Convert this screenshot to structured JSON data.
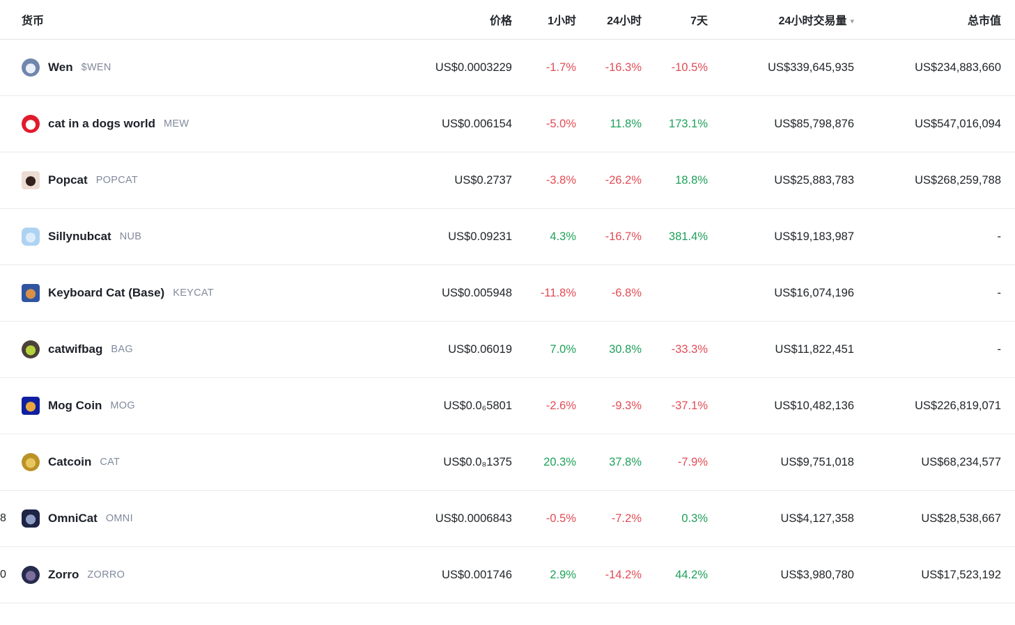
{
  "table": {
    "columns": {
      "coin": "货币",
      "price": "价格",
      "h1": "1小时",
      "h24": "24小时",
      "d7": "7天",
      "volume": "24小时交易量",
      "market_cap": "总市值"
    },
    "sort": {
      "active_column": "volume",
      "direction_icon": "▾"
    },
    "colors": {
      "up": "#1ea15a",
      "down": "#e24c55",
      "symbol_gray": "#808a9d",
      "text": "#212529"
    },
    "rows": [
      {
        "rank_partial": "",
        "name": "Wen",
        "symbol": "$WEN",
        "price": "US$0.0003229",
        "h1": "-1.7%",
        "h24": "-16.3%",
        "d7": "-10.5%",
        "volume": "US$339,645,935",
        "market_cap": "US$234,883,660",
        "icon": {
          "name": "wen-cat-logo",
          "shape": "circle",
          "inner": "#e9eff7",
          "outer": "#6f86ad"
        }
      },
      {
        "rank_partial": "",
        "name": "cat in a dogs world",
        "symbol": "MEW",
        "price": "US$0.006154",
        "h1": "-5.0%",
        "h24": "11.8%",
        "d7": "173.1%",
        "volume": "US$85,798,876",
        "market_cap": "US$547,016,094",
        "icon": {
          "name": "mew-cat-logo",
          "shape": "circle",
          "inner": "#ffffff",
          "outer": "#e11b2c"
        }
      },
      {
        "rank_partial": "",
        "name": "Popcat",
        "symbol": "POPCAT",
        "price": "US$0.2737",
        "h1": "-3.8%",
        "h24": "-26.2%",
        "d7": "18.8%",
        "volume": "US$25,883,783",
        "market_cap": "US$268,259,788",
        "icon": {
          "name": "popcat-logo",
          "shape": "square",
          "inner": "#32211c",
          "outer": "#ecddd4"
        }
      },
      {
        "rank_partial": "",
        "name": "Sillynubcat",
        "symbol": "NUB",
        "price": "US$0.09231",
        "h1": "4.3%",
        "h24": "-16.7%",
        "d7": "381.4%",
        "volume": "US$19,183,987",
        "market_cap": "-",
        "icon": {
          "name": "sillynubcat-logo",
          "shape": "rounded",
          "inner": "#ddedfb",
          "outer": "#aed2f2"
        }
      },
      {
        "rank_partial": "",
        "name": "Keyboard Cat (Base)",
        "symbol": "KEYCAT",
        "price": "US$0.005948",
        "h1": "-11.8%",
        "h24": "-6.8%",
        "d7": "",
        "volume": "US$16,074,196",
        "market_cap": "-",
        "icon": {
          "name": "keyboard-cat-logo",
          "shape": "square",
          "inner": "#d89048",
          "outer": "#2f55a0"
        }
      },
      {
        "rank_partial": "",
        "name": "catwifbag",
        "symbol": "BAG",
        "price": "US$0.06019",
        "h1": "7.0%",
        "h24": "30.8%",
        "d7": "-33.3%",
        "volume": "US$11,822,451",
        "market_cap": "-",
        "icon": {
          "name": "catwifbag-logo",
          "shape": "circle",
          "inner": "#b5d23a",
          "outer": "#4a4138"
        }
      },
      {
        "rank_partial": "",
        "name": "Mog Coin",
        "symbol": "MOG",
        "price": "US$0.0₆5801",
        "h1": "-2.6%",
        "h24": "-9.3%",
        "d7": "-37.1%",
        "volume": "US$10,482,136",
        "market_cap": "US$226,819,071",
        "icon": {
          "name": "mog-coin-logo",
          "shape": "square",
          "inner": "#e8a83e",
          "outer": "#0f1fa0"
        }
      },
      {
        "rank_partial": "",
        "name": "Catcoin",
        "symbol": "CAT",
        "price": "US$0.0₈1375",
        "h1": "20.3%",
        "h24": "37.8%",
        "d7": "-7.9%",
        "volume": "US$9,751,018",
        "market_cap": "US$68,234,577",
        "icon": {
          "name": "catcoin-logo",
          "shape": "circle",
          "inner": "#e7c65e",
          "outer": "#bb9226"
        }
      },
      {
        "rank_partial": "8",
        "name": "OmniCat",
        "symbol": "OMNI",
        "price": "US$0.0006843",
        "h1": "-0.5%",
        "h24": "-7.2%",
        "d7": "0.3%",
        "volume": "US$4,127,358",
        "market_cap": "US$28,538,667",
        "icon": {
          "name": "omnicat-logo",
          "shape": "rounded",
          "inner": "#8f9cc4",
          "outer": "#1d2444"
        }
      },
      {
        "rank_partial": "0",
        "name": "Zorro",
        "symbol": "ZORRO",
        "price": "US$0.001746",
        "h1": "2.9%",
        "h24": "-14.2%",
        "d7": "44.2%",
        "volume": "US$3,980,780",
        "market_cap": "US$17,523,192",
        "icon": {
          "name": "zorro-logo",
          "shape": "circle",
          "inner": "#7d6f9d",
          "outer": "#272c4e"
        }
      }
    ]
  }
}
